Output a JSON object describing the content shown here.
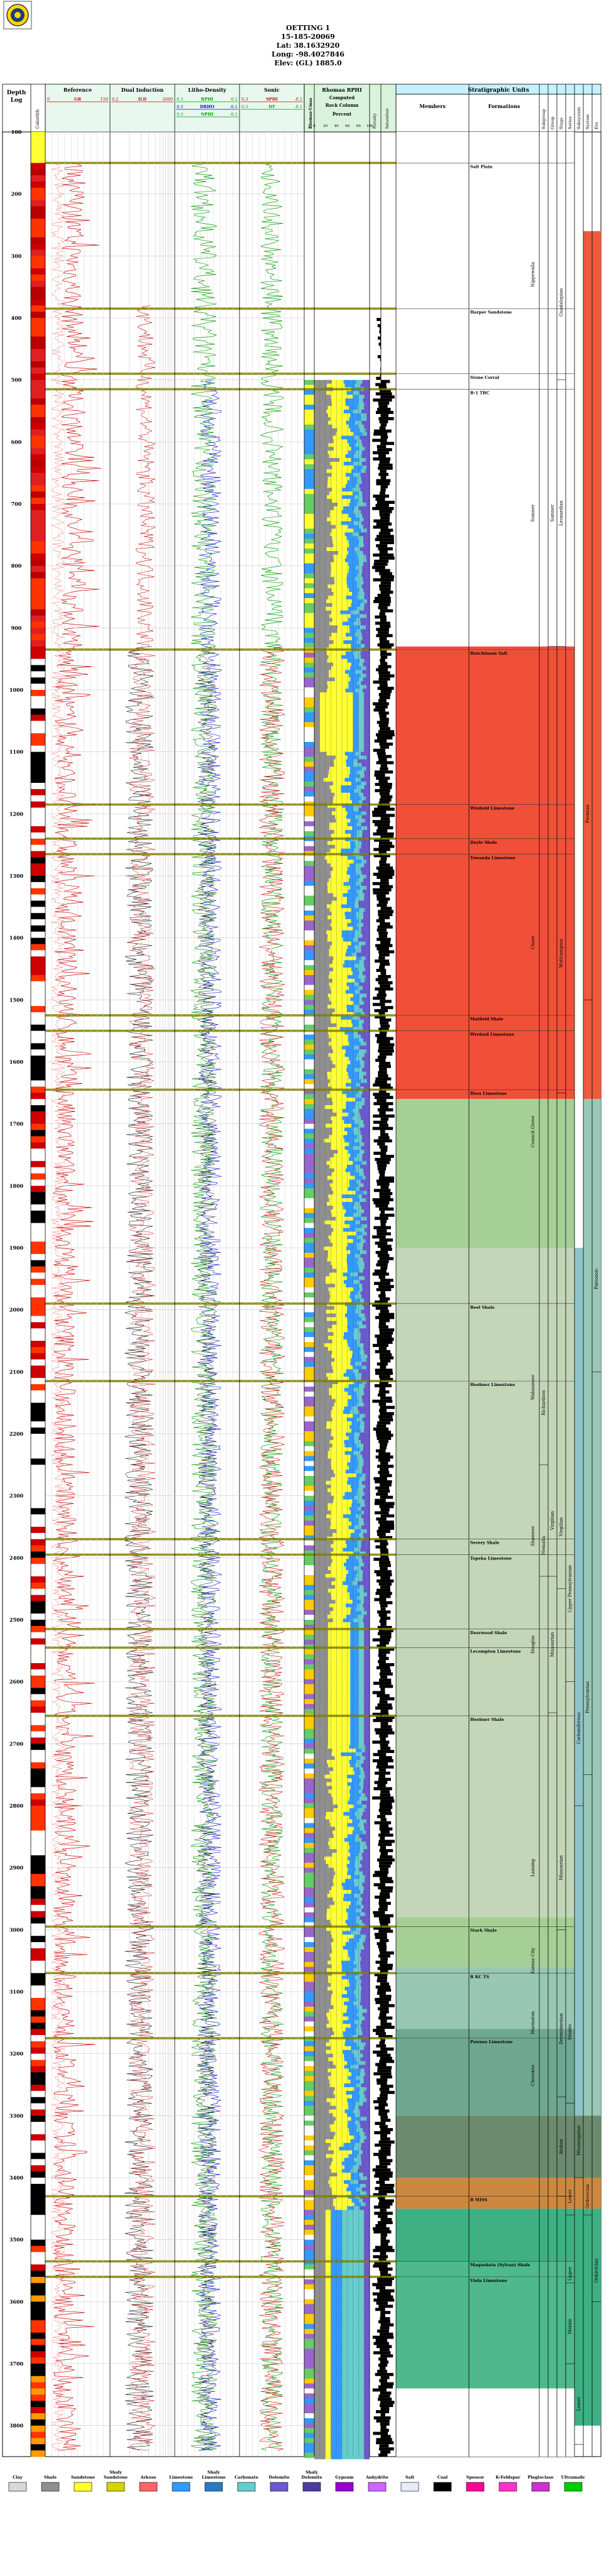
{
  "header": {
    "well_name": "OETTING 1",
    "api": "15-185-20069",
    "lat": "Lat: 38.1632920",
    "long": "Long: -98.4027846",
    "elev": "Elev: (GL) 1885.0"
  },
  "column_headers": {
    "depth": "Depth",
    "log": "Log",
    "colorlith": "Colorlith",
    "reference": "Reference",
    "dual_induction": "Dual Induction",
    "litho_density": "Litho-Density",
    "sonic": "Sonic",
    "rhomaa_umaa": "Rhomaa-Umaa",
    "rhomaa_rhob": "Rhomaa RPHI",
    "computed": "Computed",
    "rock_column": "Rock Column",
    "percent": "Percent",
    "porosity": "Porosity",
    "saturation": "Saturation",
    "strat_units": "Stratigraphic Units",
    "members": "Members",
    "formations": "Formations",
    "subgroup": "Subgroup",
    "group": "Group",
    "stage": "Stage",
    "series": "Series",
    "subsystem": "Subsystem",
    "system": "System",
    "era": "Era"
  },
  "curve_labels": {
    "reference": [
      {
        "name": "GR",
        "min": "0",
        "max": "150",
        "unit": "API",
        "color": "#cc0000"
      }
    ],
    "dual_induction": [
      {
        "name": "ILD",
        "min": "0.2",
        "max": "2000",
        "color": "#cc0000"
      }
    ],
    "litho_density": [
      {
        "name": "RPHI",
        "min": "0.3",
        "max": "-0.1",
        "color": "#009900"
      },
      {
        "name": "DRHO",
        "min": "0.3",
        "max": "-0.1",
        "color": "#0000cc"
      },
      {
        "name": "NPHI",
        "min": "0.3",
        "max": "-0.1",
        "color": "#009900"
      }
    ],
    "sonic": [
      {
        "name": "SPHI",
        "min": "0.3",
        "max": "-0.1",
        "color": "#cc0000"
      },
      {
        "name": "DT",
        "min": "0.3",
        "max": "-0.1",
        "color": "#009900"
      }
    ],
    "percent_ticks": [
      "0",
      "10",
      "20",
      "30",
      "40",
      "50",
      "60",
      "70",
      "80",
      "90",
      "100"
    ],
    "porosity_ticks": [
      "30",
      "20",
      "10",
      "0"
    ]
  },
  "depth": {
    "ticks": [
      "100",
      "200",
      "300",
      "400",
      "500",
      "600",
      "700",
      "800",
      "900",
      "1000",
      "1100",
      "1200",
      "1300",
      "1400",
      "1500",
      "1600",
      "1700",
      "1800",
      "1900",
      "2000",
      "2100",
      "2200",
      "2300",
      "2400",
      "2500",
      "2600",
      "2700",
      "2800",
      "2900",
      "3000",
      "3100",
      "3200",
      "3300",
      "3400",
      "3500",
      "3600",
      "3700",
      "3800"
    ]
  },
  "tops": [
    {
      "depth": 150,
      "label": "Salt Plain"
    },
    {
      "depth": 385,
      "label": "Harper Sandstone"
    },
    {
      "depth": 490,
      "label": "Stone Corral"
    },
    {
      "depth": 515,
      "label": "B-1 TBC"
    },
    {
      "depth": 935,
      "label": "Hutchinson Salt"
    },
    {
      "depth": 1185,
      "label": "Winfield Limestone"
    },
    {
      "depth": 1240,
      "label": "Doyle Shale"
    },
    {
      "depth": 1265,
      "label": "Towanda Limestone"
    },
    {
      "depth": 1525,
      "label": "Matfield Shale"
    },
    {
      "depth": 1550,
      "label": "Wreford Limestone"
    },
    {
      "depth": 1645,
      "label": "Hera Limestone"
    },
    {
      "depth": 1990,
      "label": "Beel Shale"
    },
    {
      "depth": 2115,
      "label": "Heebner Limestone"
    },
    {
      "depth": 2370,
      "label": "Severy Shale"
    },
    {
      "depth": 2395,
      "label": "Topeka Limestone"
    },
    {
      "depth": 2515,
      "label": "Deerwood Shale"
    },
    {
      "depth": 2545,
      "label": "Lecompton Limestone"
    },
    {
      "depth": 2655,
      "label": "Heebner Shale"
    },
    {
      "depth": 2995,
      "label": "Stark Shale"
    },
    {
      "depth": 3070,
      "label": "B KC TS"
    },
    {
      "depth": 3175,
      "label": "Pawnee Limestone"
    },
    {
      "depth": 3430,
      "label": "B MISS"
    },
    {
      "depth": 3535,
      "label": "Maquoketa (Sylvan) Shale"
    },
    {
      "depth": 3560,
      "label": "Viola Limestone"
    }
  ],
  "strat_columns": {
    "formations": [
      {
        "from": 260,
        "to": 400,
        "label": "Nippewalla"
      },
      {
        "from": 500,
        "to": 930,
        "label": "Sumner"
      },
      {
        "from": 1170,
        "to": 1645,
        "label": "Chase"
      },
      {
        "from": 1645,
        "to": 1780,
        "label": "Council Grove"
      },
      {
        "from": 1950,
        "to": 2300,
        "label": "Wabaunsee"
      },
      {
        "from": 2300,
        "to": 2430,
        "label": "Shawnee"
      },
      {
        "from": 2430,
        "to": 2650,
        "label": "Douglas"
      },
      {
        "from": 2800,
        "to": 3000,
        "label": "Lansing"
      },
      {
        "from": 3000,
        "to": 3100,
        "label": "Kansas City"
      },
      {
        "from": 3100,
        "to": 3200,
        "label": "Marmaton"
      },
      {
        "from": 3200,
        "to": 3270,
        "label": "Cherokee"
      }
    ],
    "subgroup": [
      {
        "from": 2050,
        "to": 2250,
        "label": "Richardson"
      },
      {
        "from": 2330,
        "to": 2430,
        "label": "Nemaha"
      }
    ],
    "group": [
      {
        "from": 500,
        "to": 930,
        "label": "Sumner"
      },
      {
        "from": 2250,
        "to": 2430,
        "label": "Virgilian"
      },
      {
        "from": 2430,
        "to": 2650,
        "label": "Missourian"
      }
    ],
    "stage": [
      {
        "from": 250,
        "to": 500,
        "label": "Guadalupian"
      },
      {
        "from": 500,
        "to": 930,
        "label": "Leonardian"
      },
      {
        "from": 1200,
        "to": 1650,
        "label": "Wolfcampian"
      },
      {
        "from": 2250,
        "to": 2450,
        "label": "Virgilian"
      },
      {
        "from": 2800,
        "to": 3000,
        "label": "Missourian"
      },
      {
        "from": 3050,
        "to": 3270,
        "label": "Desmoinesian"
      },
      {
        "from": 3270,
        "to": 3430,
        "label": "Atokan"
      }
    ],
    "series": [
      {
        "from": 2300,
        "to": 2600,
        "label": "Upper Pennsylvanian"
      },
      {
        "from": 3050,
        "to": 3280,
        "label": "Middle"
      },
      {
        "from": 3400,
        "to": 3460,
        "label": "Lower"
      },
      {
        "from": 3540,
        "to": 3570,
        "label": "Upper"
      },
      {
        "from": 3580,
        "to": 3700,
        "label": "Middle"
      }
    ],
    "subsystem": [
      {
        "from": 2550,
        "to": 2800,
        "label": "Carboniferous"
      },
      {
        "from": 3280,
        "to": 3400,
        "label": "Mississippian"
      },
      {
        "from": 3700,
        "to": 3830,
        "label": "Lower"
      }
    ],
    "system": [
      {
        "from": 900,
        "to": 1500,
        "label": "Permian"
      },
      {
        "from": 2500,
        "to": 2750,
        "label": "Pennsylvanian"
      },
      {
        "from": 3400,
        "to": 3460,
        "label": "Ordovician"
      }
    ],
    "era": [
      {
        "from": 1800,
        "to": 2100,
        "label": "Paleozoic"
      },
      {
        "from": 3500,
        "to": 3600,
        "label": "Ordovician"
      }
    ]
  },
  "legend": [
    {
      "label": "Clay",
      "color": "#d8d8d8"
    },
    {
      "label": "Shale",
      "color": "#8f8f8f"
    },
    {
      "label": "Sandstone",
      "color": "#ffff33"
    },
    {
      "label": "Shaly Sandstone",
      "color": "#d4d400"
    },
    {
      "label": "Arkose",
      "color": "#ff6666"
    },
    {
      "label": "Limestone",
      "color": "#3399ff"
    },
    {
      "label": "Shaly Limestone",
      "color": "#2a7ac2"
    },
    {
      "label": "Carbonate",
      "color": "#66cccc"
    },
    {
      "label": "Dolomite",
      "color": "#6a5acd"
    },
    {
      "label": "Shaly Dolomite",
      "color": "#4b3c9e"
    },
    {
      "label": "Gypsum",
      "color": "#9900cc"
    },
    {
      "label": "Anhydrite",
      "color": "#cc66ff"
    },
    {
      "label": "Salt",
      "color": "#e9e9ff"
    },
    {
      "label": "Coal",
      "color": "#000000"
    },
    {
      "label": "Spessor",
      "color": "#ff0099"
    },
    {
      "label": "K-Feldspar",
      "color": "#ff33cc"
    },
    {
      "label": "Plagioclase",
      "color": "#cc33cc"
    },
    {
      "label": "Ultramafic",
      "color": "#00cc00"
    }
  ],
  "colors": {
    "header_bg": "#c5f1ff",
    "curve_head": "#e8f8ef",
    "mid_hdr": "#d9f3dc",
    "tops_line": "#808000",
    "gr": "#cc0000",
    "nphi": "#009900",
    "rho": "#0000cc"
  }
}
